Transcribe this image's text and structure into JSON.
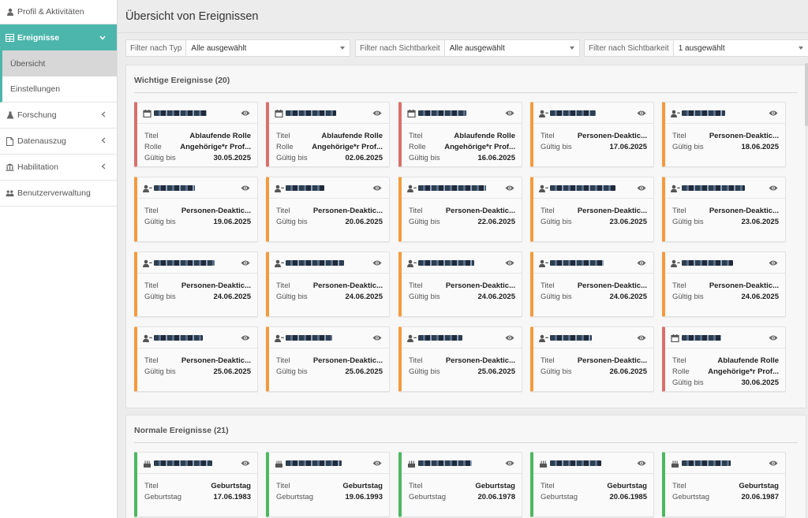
{
  "sidebar": {
    "items": [
      {
        "label": "Profil & Aktivitäten",
        "icon": "user-icon"
      },
      {
        "label": "Ereignisse",
        "icon": "table-icon",
        "active": true
      },
      {
        "label": "Übersicht",
        "sub": true,
        "selected": true
      },
      {
        "label": "Einstellungen",
        "sub": true
      },
      {
        "label": "Forschung",
        "icon": "flask-icon"
      },
      {
        "label": "Datenauszug",
        "icon": "file-icon"
      },
      {
        "label": "Habilitation",
        "icon": "institution-icon"
      },
      {
        "label": "Benutzerverwaltung",
        "icon": "users-icon"
      }
    ]
  },
  "header": {
    "title": "Übersicht von Ereignissen"
  },
  "filters": [
    {
      "label": "Filter nach Typ",
      "value": "Alle ausgewählt"
    },
    {
      "label": "Filter nach Sichtbarkeit",
      "value": "Alle ausgewählt"
    },
    {
      "label": "Filter nach Sichtbarkeit",
      "value": "1 ausgewählt"
    }
  ],
  "important": {
    "title": "Wichtige Ereignisse (20)",
    "cards": [
      {
        "color": "red",
        "icon": "calendar-icon",
        "rows": [
          [
            "Titel",
            "Ablaufende Rolle"
          ],
          [
            "Rolle",
            "Angehörige*r Prof..."
          ],
          [
            "Gültig bis",
            "30.05.2025"
          ]
        ]
      },
      {
        "color": "red",
        "icon": "calendar-icon",
        "rows": [
          [
            "Titel",
            "Ablaufende Rolle"
          ],
          [
            "Rolle",
            "Angehörige*r Prof..."
          ],
          [
            "Gültig bis",
            "02.06.2025"
          ]
        ]
      },
      {
        "color": "red",
        "icon": "calendar-icon",
        "rows": [
          [
            "Titel",
            "Ablaufende Rolle"
          ],
          [
            "Rolle",
            "Angehörige*r Prof..."
          ],
          [
            "Gültig bis",
            "16.06.2025"
          ]
        ]
      },
      {
        "color": "orange",
        "icon": "user-minus-icon",
        "rows": [
          [
            "Titel",
            "Personen-Deaktic..."
          ],
          [
            "Gültig bis",
            "17.06.2025"
          ]
        ]
      },
      {
        "color": "orange",
        "icon": "user-minus-icon",
        "rows": [
          [
            "Titel",
            "Personen-Deaktic..."
          ],
          [
            "Gültig bis",
            "18.06.2025"
          ]
        ]
      },
      {
        "color": "orange",
        "icon": "user-minus-icon",
        "rows": [
          [
            "Titel",
            "Personen-Deaktic..."
          ],
          [
            "Gültig bis",
            "19.06.2025"
          ]
        ]
      },
      {
        "color": "orange",
        "icon": "user-minus-icon",
        "rows": [
          [
            "Titel",
            "Personen-Deaktic..."
          ],
          [
            "Gültig bis",
            "20.06.2025"
          ]
        ]
      },
      {
        "color": "orange",
        "icon": "user-minus-icon",
        "rows": [
          [
            "Titel",
            "Personen-Deaktic..."
          ],
          [
            "Gültig bis",
            "22.06.2025"
          ]
        ]
      },
      {
        "color": "orange",
        "icon": "user-minus-icon",
        "rows": [
          [
            "Titel",
            "Personen-Deaktic..."
          ],
          [
            "Gültig bis",
            "23.06.2025"
          ]
        ]
      },
      {
        "color": "orange",
        "icon": "user-minus-icon",
        "rows": [
          [
            "Titel",
            "Personen-Deaktic..."
          ],
          [
            "Gültig bis",
            "23.06.2025"
          ]
        ]
      },
      {
        "color": "orange",
        "icon": "user-minus-icon",
        "rows": [
          [
            "Titel",
            "Personen-Deaktic..."
          ],
          [
            "Gültig bis",
            "24.06.2025"
          ]
        ]
      },
      {
        "color": "orange",
        "icon": "user-minus-icon",
        "rows": [
          [
            "Titel",
            "Personen-Deaktic..."
          ],
          [
            "Gültig bis",
            "24.06.2025"
          ]
        ]
      },
      {
        "color": "orange",
        "icon": "user-minus-icon",
        "rows": [
          [
            "Titel",
            "Personen-Deaktic..."
          ],
          [
            "Gültig bis",
            "24.06.2025"
          ]
        ]
      },
      {
        "color": "orange",
        "icon": "user-minus-icon",
        "rows": [
          [
            "Titel",
            "Personen-Deaktic..."
          ],
          [
            "Gültig bis",
            "24.06.2025"
          ]
        ]
      },
      {
        "color": "orange",
        "icon": "user-minus-icon",
        "rows": [
          [
            "Titel",
            "Personen-Deaktic..."
          ],
          [
            "Gültig bis",
            "24.06.2025"
          ]
        ]
      },
      {
        "color": "orange",
        "icon": "user-minus-icon",
        "rows": [
          [
            "Titel",
            "Personen-Deaktic..."
          ],
          [
            "Gültig bis",
            "25.06.2025"
          ]
        ]
      },
      {
        "color": "orange",
        "icon": "user-minus-icon",
        "rows": [
          [
            "Titel",
            "Personen-Deaktic..."
          ],
          [
            "Gültig bis",
            "25.06.2025"
          ]
        ]
      },
      {
        "color": "orange",
        "icon": "user-minus-icon",
        "rows": [
          [
            "Titel",
            "Personen-Deaktic..."
          ],
          [
            "Gültig bis",
            "25.06.2025"
          ]
        ]
      },
      {
        "color": "orange",
        "icon": "user-minus-icon",
        "rows": [
          [
            "Titel",
            "Personen-Deaktic..."
          ],
          [
            "Gültig bis",
            "26.06.2025"
          ]
        ]
      },
      {
        "color": "red",
        "icon": "calendar-icon",
        "rows": [
          [
            "Titel",
            "Ablaufende Rolle"
          ],
          [
            "Rolle",
            "Angehörige*r Prof..."
          ],
          [
            "Gültig bis",
            "30.06.2025"
          ]
        ]
      }
    ]
  },
  "normal": {
    "title": "Normale Ereignisse (21)",
    "cards": [
      {
        "color": "green",
        "icon": "cake-icon",
        "rows": [
          [
            "Titel",
            "Geburtstag"
          ],
          [
            "Geburtstag",
            "17.06.1983"
          ]
        ]
      },
      {
        "color": "green",
        "icon": "cake-icon",
        "rows": [
          [
            "Titel",
            "Geburtstag"
          ],
          [
            "Geburtstag",
            "19.06.1993"
          ]
        ]
      },
      {
        "color": "green",
        "icon": "cake-icon",
        "rows": [
          [
            "Titel",
            "Geburtstag"
          ],
          [
            "Geburtstag",
            "20.06.1978"
          ]
        ]
      },
      {
        "color": "green",
        "icon": "cake-icon",
        "rows": [
          [
            "Titel",
            "Geburtstag"
          ],
          [
            "Geburtstag",
            "20.06.1985"
          ]
        ]
      },
      {
        "color": "green",
        "icon": "cake-icon",
        "rows": [
          [
            "Titel",
            "Geburtstag"
          ],
          [
            "Geburtstag",
            "20.06.1987"
          ]
        ]
      }
    ]
  },
  "colors": {
    "accent": "#4db6ac",
    "red": "#d9706b",
    "orange": "#f59a3c",
    "green": "#4cb860"
  }
}
